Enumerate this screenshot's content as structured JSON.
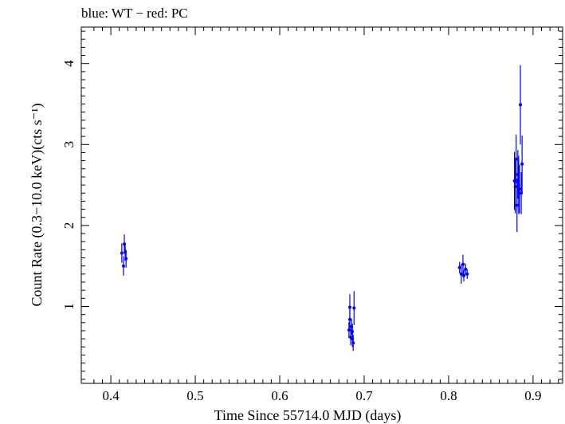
{
  "chart_data": {
    "type": "scatter",
    "title": "blue: WT − red: PC",
    "xlabel": "Time Since 55714.0 MJD (days)",
    "ylabel": "Count Rate (0.3−10.0 keV)(cts s⁻¹)",
    "xlim": [
      0.365,
      0.935
    ],
    "ylim": [
      0.05,
      4.45
    ],
    "xticks": [
      0.4,
      0.5,
      0.6,
      0.7,
      0.8,
      0.9
    ],
    "xtick_labels": [
      "0.4",
      "0.5",
      "0.6",
      "0.7",
      "0.8",
      "0.9"
    ],
    "yticks": [
      1,
      2,
      3,
      4
    ],
    "ytick_labels": [
      "1",
      "2",
      "3",
      "4"
    ],
    "grid": false,
    "colors": {
      "WT": "#0000ff",
      "PC": "#ff0000"
    },
    "series": [
      {
        "name": "WT",
        "color": "#0000ff",
        "points": [
          {
            "x": 0.413,
            "y": 1.66,
            "yerr": 0.12
          },
          {
            "x": 0.415,
            "y": 1.5,
            "yerr": 0.12
          },
          {
            "x": 0.416,
            "y": 1.77,
            "yerr": 0.12
          },
          {
            "x": 0.417,
            "y": 1.67,
            "yerr": 0.11
          },
          {
            "x": 0.418,
            "y": 1.59,
            "yerr": 0.11
          },
          {
            "x": 0.682,
            "y": 0.71,
            "yerr": 0.1
          },
          {
            "x": 0.683,
            "y": 0.99,
            "yerr": 0.16
          },
          {
            "x": 0.683,
            "y": 0.84,
            "yerr": 0.13
          },
          {
            "x": 0.684,
            "y": 0.62,
            "yerr": 0.1
          },
          {
            "x": 0.685,
            "y": 0.75,
            "yerr": 0.1
          },
          {
            "x": 0.686,
            "y": 0.6,
            "yerr": 0.1
          },
          {
            "x": 0.686,
            "y": 0.69,
            "yerr": 0.1
          },
          {
            "x": 0.687,
            "y": 0.55,
            "yerr": 0.1
          },
          {
            "x": 0.688,
            "y": 0.98,
            "yerr": 0.21
          },
          {
            "x": 0.813,
            "y": 1.48,
            "yerr": 0.07
          },
          {
            "x": 0.815,
            "y": 1.4,
            "yerr": 0.12
          },
          {
            "x": 0.817,
            "y": 1.52,
            "yerr": 0.12
          },
          {
            "x": 0.818,
            "y": 1.38,
            "yerr": 0.07
          },
          {
            "x": 0.82,
            "y": 1.46,
            "yerr": 0.07
          },
          {
            "x": 0.822,
            "y": 1.4,
            "yerr": 0.06
          },
          {
            "x": 0.878,
            "y": 2.55,
            "yerr": 0.36
          },
          {
            "x": 0.879,
            "y": 2.48,
            "yerr": 0.33
          },
          {
            "x": 0.88,
            "y": 2.82,
            "yerr": 0.3
          },
          {
            "x": 0.881,
            "y": 2.25,
            "yerr": 0.33
          },
          {
            "x": 0.882,
            "y": 2.63,
            "yerr": 0.3
          },
          {
            "x": 0.883,
            "y": 2.5,
            "yerr": 0.36
          },
          {
            "x": 0.884,
            "y": 2.45,
            "yerr": 0.3
          },
          {
            "x": 0.885,
            "y": 3.49,
            "yerr": 0.49
          },
          {
            "x": 0.886,
            "y": 2.4,
            "yerr": 0.26
          },
          {
            "x": 0.887,
            "y": 2.76,
            "yerr": 0.35
          }
        ]
      }
    ]
  }
}
